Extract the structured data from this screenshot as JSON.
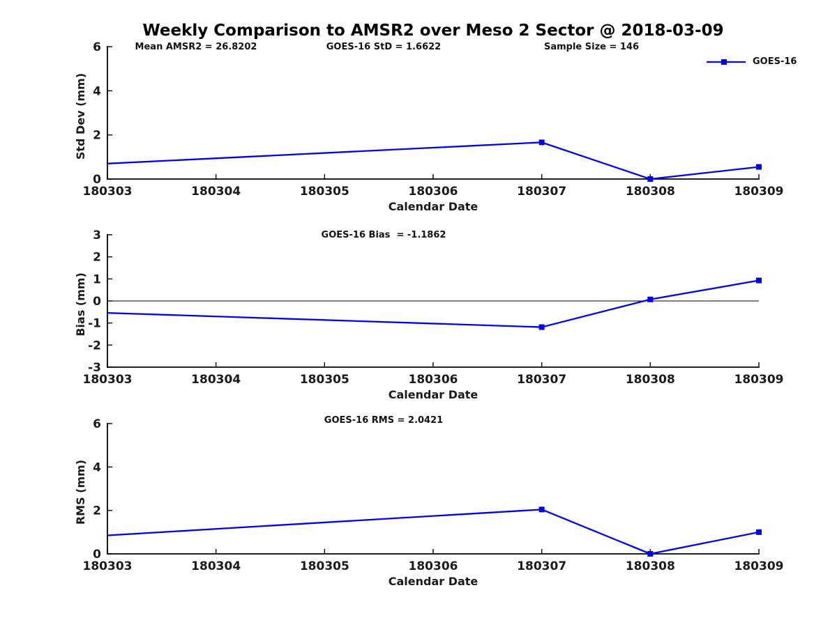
{
  "figure": {
    "title": "Weekly Comparison to AMSR2 over Meso 2 Sector @ 2018-03-09",
    "background": "#FFFFFF"
  },
  "legend": {
    "label": "GOES-16",
    "position": "top-right",
    "box": false
  },
  "colors": {
    "series": "#0000EE",
    "axis": "#000000",
    "text": "#1A1A1A",
    "title": "#000000",
    "zero_line": "#000000"
  },
  "chart_data": [
    {
      "id": "stddev",
      "type": "line",
      "series": "GOES-16",
      "ylabel": "Std Dev (mm)",
      "xlabel": "Calendar Date",
      "x_ticks": [
        "180303",
        "180304",
        "180305",
        "180306",
        "180307",
        "180308",
        "180309"
      ],
      "ylim": [
        0,
        6
      ],
      "y_ticks": [
        0,
        2,
        4,
        6
      ],
      "zero_line": false,
      "grid": false,
      "annotations": [
        "Mean AMSR2 = 26.8202",
        "GOES-16 StD = 1.6622",
        "Sample Size = 146"
      ],
      "stats": {
        "mean_amsr2": 26.8202,
        "goes16_std": 1.6622,
        "sample_size": 146
      },
      "points": [
        {
          "x": "180303",
          "y": 0.7,
          "marker": false
        },
        {
          "x": "180307",
          "y": 1.6622,
          "marker": true
        },
        {
          "x": "180308",
          "y": 0.0,
          "marker": true
        },
        {
          "x": "180309",
          "y": 0.55,
          "marker": true
        }
      ]
    },
    {
      "id": "bias",
      "type": "line",
      "series": "GOES-16",
      "ylabel": "Bias (mm)",
      "xlabel": "Calendar Date",
      "x_ticks": [
        "180303",
        "180304",
        "180305",
        "180306",
        "180307",
        "180308",
        "180309"
      ],
      "ylim": [
        -3,
        3
      ],
      "y_ticks": [
        -3,
        -2,
        -1,
        0,
        1,
        2,
        3
      ],
      "zero_line": true,
      "grid": false,
      "annotations": [
        "GOES-16 Bias  = -1.1862"
      ],
      "stats": {
        "goes16_bias": -1.1862
      },
      "points": [
        {
          "x": "180303",
          "y": -0.54,
          "marker": false
        },
        {
          "x": "180307",
          "y": -1.1862,
          "marker": true
        },
        {
          "x": "180308",
          "y": 0.07,
          "marker": true
        },
        {
          "x": "180309",
          "y": 0.93,
          "marker": true
        }
      ]
    },
    {
      "id": "rms",
      "type": "line",
      "series": "GOES-16",
      "ylabel": "RMS (mm)",
      "xlabel": "Calendar Date",
      "x_ticks": [
        "180303",
        "180304",
        "180305",
        "180306",
        "180307",
        "180308",
        "180309"
      ],
      "ylim": [
        0,
        6
      ],
      "y_ticks": [
        0,
        2,
        4,
        6
      ],
      "zero_line": false,
      "grid": false,
      "annotations": [
        "GOES-16 RMS = 2.0421"
      ],
      "stats": {
        "goes16_rms": 2.0421
      },
      "points": [
        {
          "x": "180303",
          "y": 0.85,
          "marker": false
        },
        {
          "x": "180307",
          "y": 2.0421,
          "marker": true
        },
        {
          "x": "180308",
          "y": 0.0,
          "marker": true
        },
        {
          "x": "180309",
          "y": 1.0,
          "marker": true
        }
      ]
    }
  ]
}
